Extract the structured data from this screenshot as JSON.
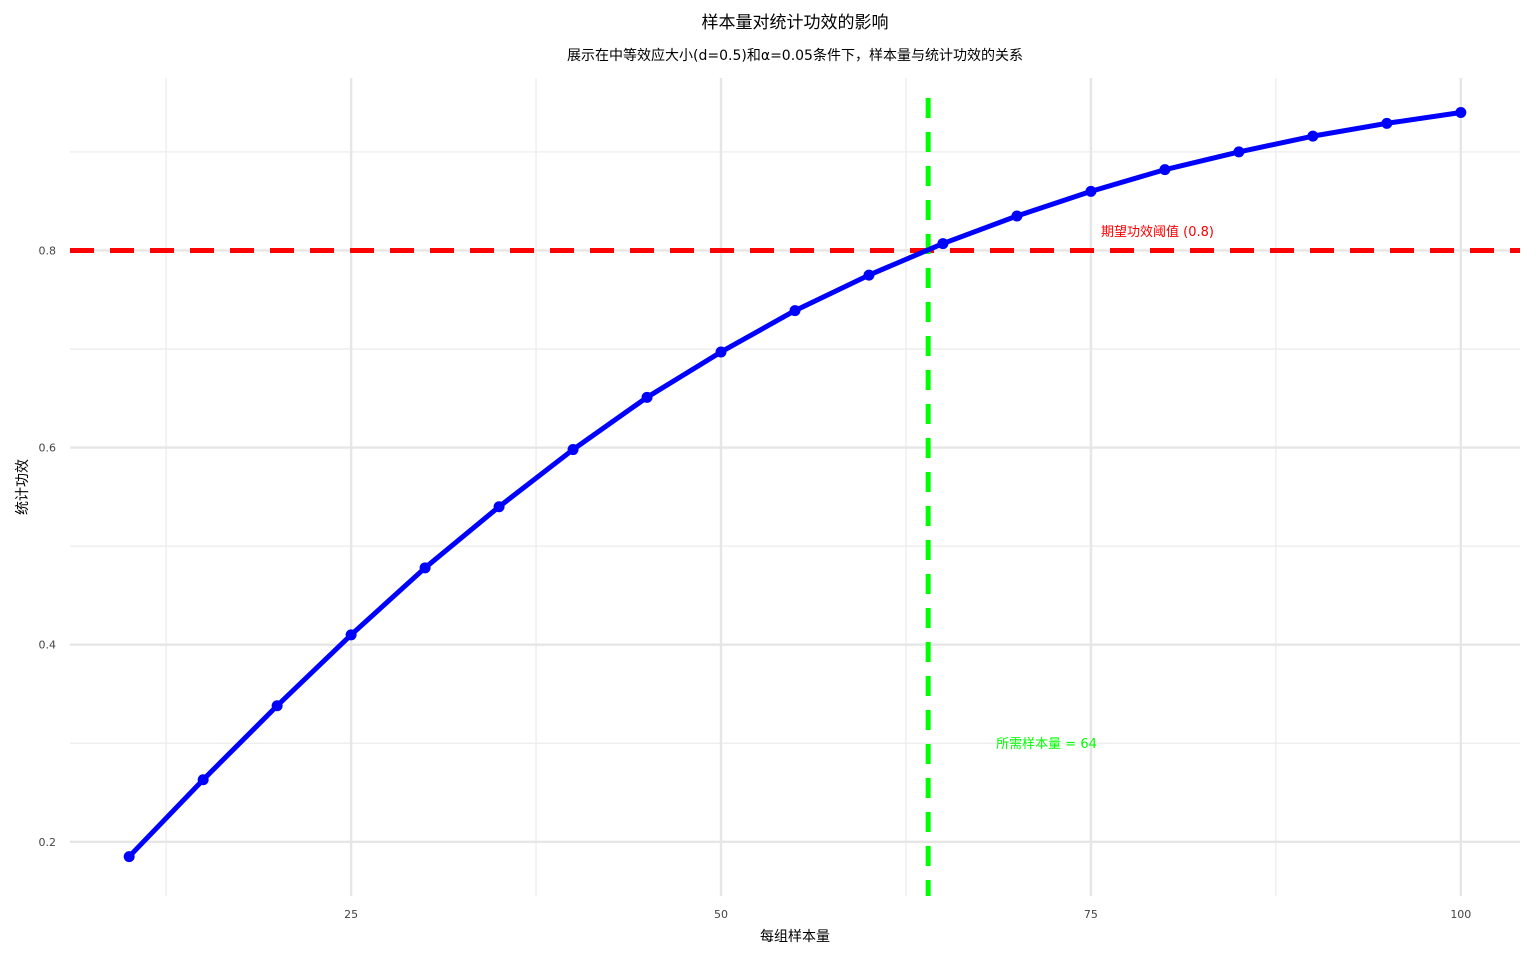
{
  "chart_data": {
    "type": "line",
    "title": "样本量对统计功效的影响",
    "subtitle": "展示在中等效应大小(d=0.5)和α=0.05条件下，样本量与统计功效的关系",
    "xlabel": "每组样本量",
    "ylabel": "统计功效",
    "xlim": [
      6,
      104
    ],
    "ylim": [
      0.145,
      0.975
    ],
    "x_ticks": [
      25,
      50,
      75,
      100
    ],
    "x_minor_ticks": [
      12.5,
      37.5,
      62.5,
      87.5
    ],
    "y_ticks": [
      0.2,
      0.4,
      0.6,
      0.8
    ],
    "y_minor_ticks": [
      0.3,
      0.5,
      0.7,
      0.9
    ],
    "grid": true,
    "series": [
      {
        "color": "#0000ff",
        "x": [
          10,
          15,
          20,
          25,
          30,
          35,
          40,
          45,
          50,
          55,
          60,
          65,
          70,
          75,
          80,
          85,
          90,
          95,
          100
        ],
        "y": [
          0.185,
          0.263,
          0.338,
          0.41,
          0.478,
          0.54,
          0.598,
          0.651,
          0.697,
          0.739,
          0.775,
          0.807,
          0.835,
          0.86,
          0.882,
          0.9,
          0.916,
          0.929,
          0.94
        ]
      }
    ],
    "hline": {
      "y": 0.8,
      "color": "#ff0000",
      "label": "期望功效阈值 (0.8)",
      "label_x": 79.5,
      "label_y": 0.82
    },
    "vline": {
      "x": 64,
      "color": "#00ff00",
      "label": "所需样本量 = 64",
      "label_x": 72,
      "label_y": 0.3
    }
  }
}
